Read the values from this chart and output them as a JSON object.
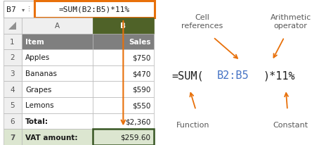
{
  "bg_color": "#ffffff",
  "spreadsheet": {
    "formula_bar_cell": "B7",
    "formula_bar_text": "=SUM(B2:B5)*11%",
    "formula_bar_border": "#e8700a",
    "col_A": [
      "Item",
      "Apples",
      "Bananas",
      "Grapes",
      "Lemons",
      "Total:",
      "VAT amount:"
    ],
    "col_B": [
      "Sales",
      "$750",
      "$470",
      "$590",
      "$550",
      "$2,360",
      "$259.60"
    ],
    "header_bg": "#808080",
    "header_fg": "#ffffff",
    "col_B_header_bg": "#4f6228",
    "row7_bg": "#e2efda",
    "row7_border": "#375623"
  },
  "diagram": {
    "formula_prefix": "=SUM(",
    "formula_ref": "B2:B5",
    "formula_suffix": ")*11%",
    "formula_color": "#1f1f1f",
    "ref_color": "#4472c4",
    "arrow_color": "#e8700a",
    "label_color": "#595959"
  }
}
